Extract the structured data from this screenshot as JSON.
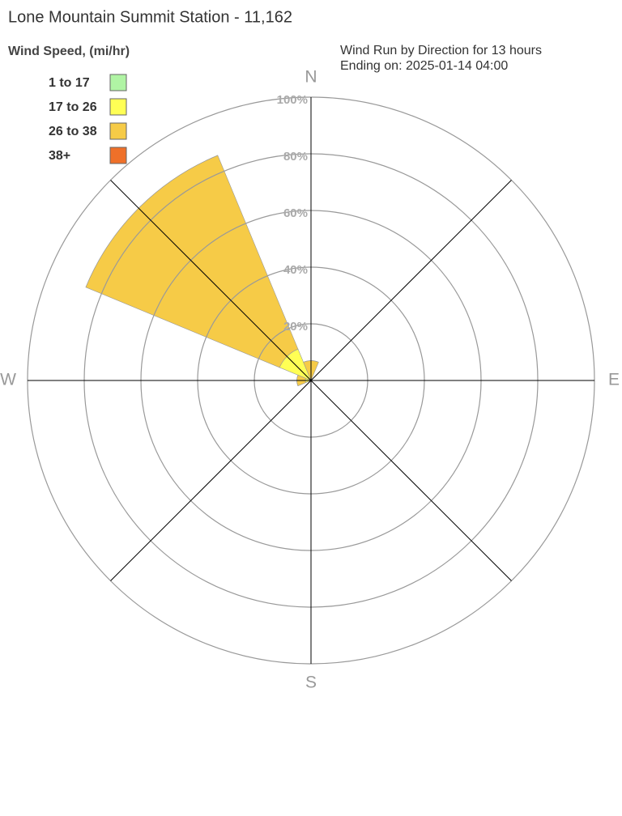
{
  "chart_data": {
    "type": "windrose",
    "title": "Lone Mountain Summit Station - 11,162",
    "subtitle": [
      "Wind Run by Direction for 13 hours",
      "Ending on: 2025-01-14 04:00"
    ],
    "legend_title": "Wind Speed, (mi/hr)",
    "categories": [
      "N",
      null,
      "E",
      null,
      "S",
      null,
      "W",
      null
    ],
    "series": [
      {
        "name": "1 to 17",
        "color": "#b0f4a4",
        "values": [
          0,
          0,
          0,
          0,
          0,
          0,
          0,
          0
        ]
      },
      {
        "name": "17 to 26",
        "color": "#ffff55",
        "values": [
          0,
          0,
          0,
          0,
          0,
          0,
          2,
          12
        ]
      },
      {
        "name": "26 to 38",
        "color": "#f6cb47",
        "values": [
          7,
          0,
          0,
          0,
          0,
          0,
          3,
          74
        ]
      },
      {
        "name": "38+",
        "color": "#ef7029",
        "values": [
          0,
          0,
          0,
          0,
          0,
          0,
          0,
          0
        ]
      }
    ],
    "rlim": [
      0,
      100
    ],
    "rticks": [
      {
        "value": 20,
        "label": "20%"
      },
      {
        "value": 40,
        "label": "40%"
      },
      {
        "value": 60,
        "label": "60%"
      },
      {
        "value": 80,
        "label": "80%"
      },
      {
        "value": 100,
        "label": "100%"
      }
    ]
  }
}
